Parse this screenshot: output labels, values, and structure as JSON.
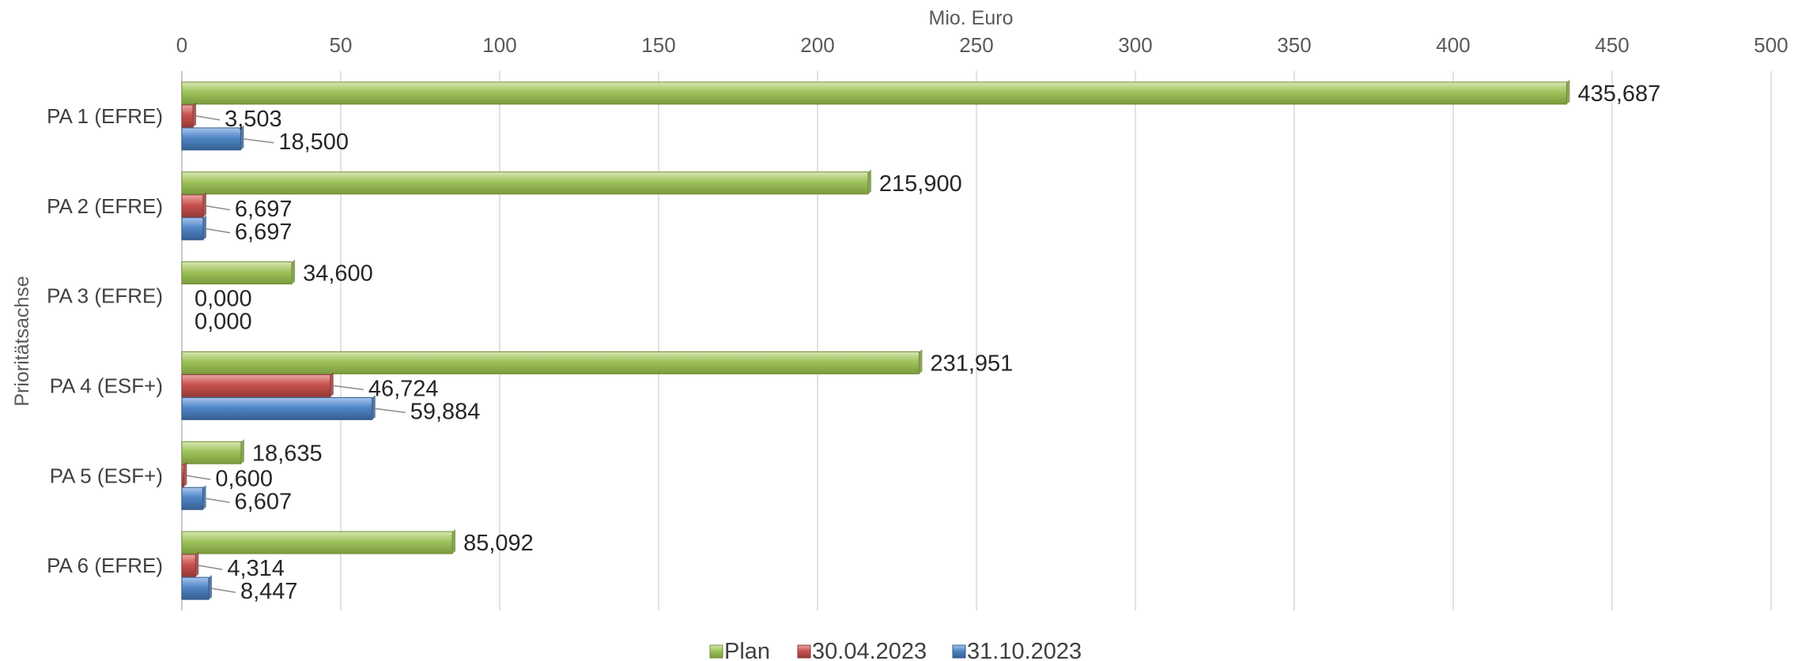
{
  "chart_data": {
    "type": "bar",
    "orientation": "horizontal",
    "xlabel": "Mio. Euro",
    "ylabel": "Prioritätsachse",
    "xlim": [
      0,
      500
    ],
    "xticks": [
      0,
      50,
      100,
      150,
      200,
      250,
      300,
      350,
      400,
      450,
      500
    ],
    "x_axis_position": "top",
    "grid": true,
    "legend_position": "bottom",
    "categories": [
      "PA 1 (EFRE)",
      "PA 2 (EFRE)",
      "PA 3 (EFRE)",
      "PA 4 (ESF+)",
      "PA 5 (ESF+)",
      "PA 6 (EFRE)"
    ],
    "series": [
      {
        "name": "Plan",
        "color": "#9BBB59",
        "values": [
          435.687,
          215.9,
          34.6,
          231.951,
          18.635,
          85.092
        ],
        "labels": [
          "435,687",
          "215,900",
          "34,600",
          "231,951",
          "18,635",
          "85,092"
        ]
      },
      {
        "name": "30.04.2023",
        "color": "#C0504D",
        "values": [
          3.503,
          6.697,
          0.0,
          46.724,
          0.6,
          4.314
        ],
        "labels": [
          "3,503",
          "6,697",
          "0,000",
          "46,724",
          "0,600",
          "4,314"
        ]
      },
      {
        "name": "31.10.2023",
        "color": "#4F81BD",
        "values": [
          18.5,
          6.697,
          0.0,
          59.884,
          6.607,
          8.447
        ],
        "labels": [
          "18,500",
          "6,697",
          "0,000",
          "59,884",
          "6,607",
          "8,447"
        ]
      }
    ]
  }
}
